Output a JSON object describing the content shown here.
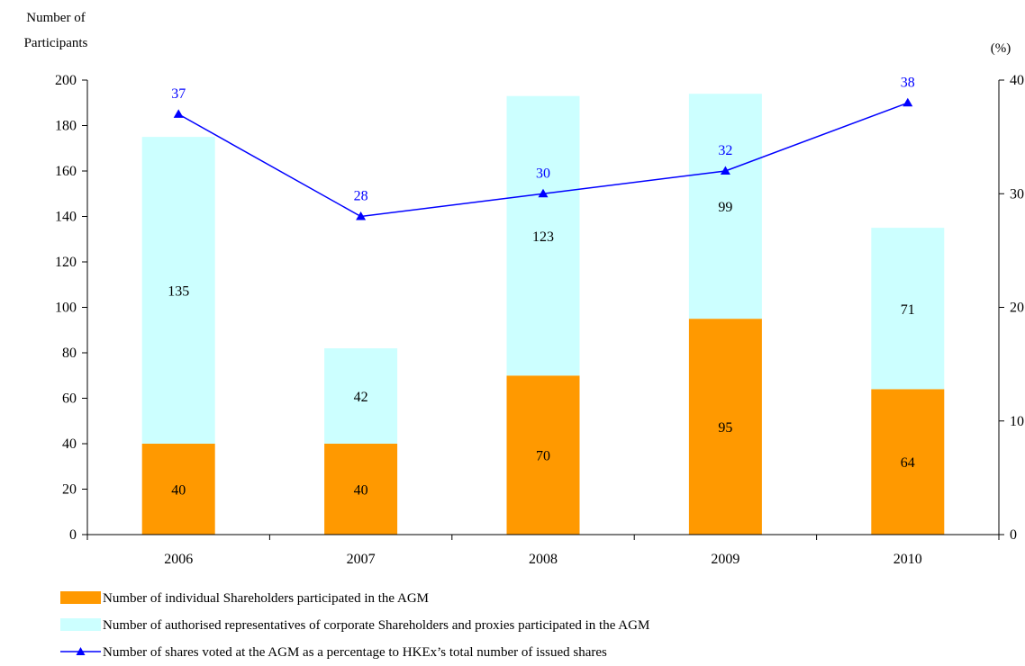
{
  "chart_data": {
    "type": "bar",
    "stacked": true,
    "categories": [
      "2006",
      "2007",
      "2008",
      "2009",
      "2010"
    ],
    "series": [
      {
        "name": "Number of individual Shareholders participated in the AGM",
        "type": "bar",
        "axis": "left",
        "color": "#ff9900",
        "values": [
          40,
          40,
          70,
          95,
          64
        ]
      },
      {
        "name": "Number of authorised representatives of corporate Shareholders and proxies participated in the AGM",
        "type": "bar",
        "axis": "left",
        "color": "#ccffff",
        "values": [
          135,
          42,
          123,
          99,
          71
        ]
      },
      {
        "name": "Number of shares voted at the AGM as a percentage to HKEx’s total number of issued shares",
        "type": "line",
        "axis": "right",
        "color": "#0000ff",
        "marker": "triangle",
        "values": [
          37,
          28,
          30,
          32,
          38
        ]
      }
    ],
    "ylabel_left": [
      "Number of",
      "Participants"
    ],
    "ylabel_right": "(%)",
    "ylim_left": [
      0,
      200
    ],
    "yticks_left": [
      0,
      20,
      40,
      60,
      80,
      100,
      120,
      140,
      160,
      180,
      200
    ],
    "ylim_right": [
      0,
      40
    ],
    "yticks_right": [
      0,
      10,
      20,
      30,
      40
    ],
    "grid": false,
    "legend_position": "bottom"
  }
}
